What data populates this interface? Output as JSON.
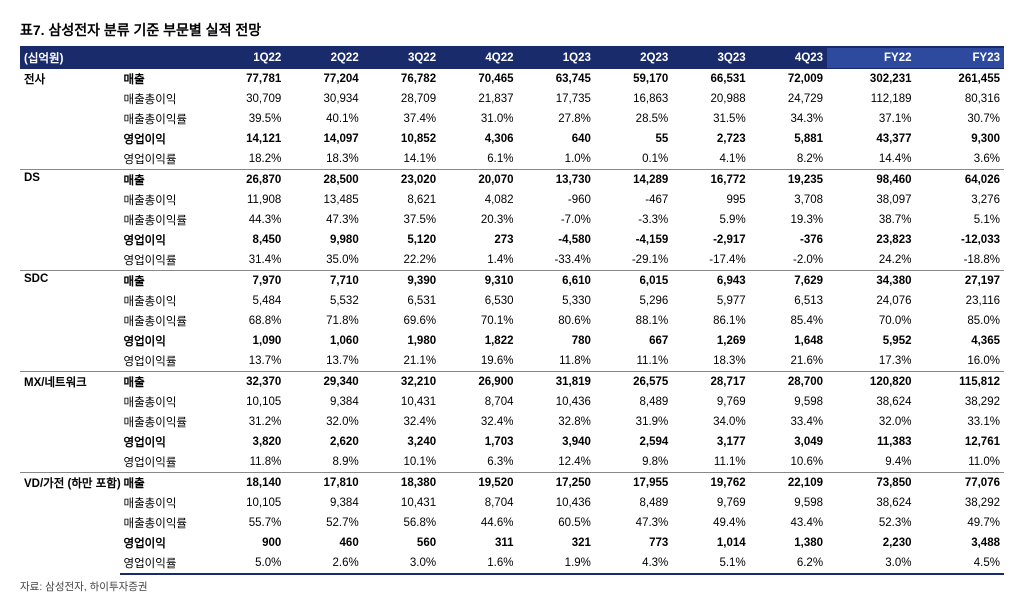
{
  "title": "표7. 삼성전자 분류 기준 부문별 실적 전망",
  "unit": "(십억원)",
  "source": "자료: 삼성전자, 하이투자증권",
  "columns": [
    "1Q22",
    "2Q22",
    "3Q22",
    "4Q22",
    "1Q23",
    "2Q23",
    "3Q23",
    "4Q23",
    "FY22",
    "FY23"
  ],
  "segments": [
    {
      "name": "전사",
      "rows": [
        {
          "label": "매출",
          "bold": true,
          "cells": [
            "77,781",
            "77,204",
            "76,782",
            "70,465",
            "63,745",
            "59,170",
            "66,531",
            "72,009",
            "302,231",
            "261,455"
          ]
        },
        {
          "label": "매출총이익",
          "cells": [
            "30,709",
            "30,934",
            "28,709",
            "21,837",
            "17,735",
            "16,863",
            "20,988",
            "24,729",
            "112,189",
            "80,316"
          ]
        },
        {
          "label": "매출총이익률",
          "cells": [
            "39.5%",
            "40.1%",
            "37.4%",
            "31.0%",
            "27.8%",
            "28.5%",
            "31.5%",
            "34.3%",
            "37.1%",
            "30.7%"
          ]
        },
        {
          "label": "영업이익",
          "bold": true,
          "cells": [
            "14,121",
            "14,097",
            "10,852",
            "4,306",
            "640",
            "55",
            "2,723",
            "5,881",
            "43,377",
            "9,300"
          ]
        },
        {
          "label": "영업이익률",
          "cells": [
            "18.2%",
            "18.3%",
            "14.1%",
            "6.1%",
            "1.0%",
            "0.1%",
            "4.1%",
            "8.2%",
            "14.4%",
            "3.6%"
          ]
        }
      ]
    },
    {
      "name": "DS",
      "rows": [
        {
          "label": "매출",
          "bold": true,
          "cells": [
            "26,870",
            "28,500",
            "23,020",
            "20,070",
            "13,730",
            "14,289",
            "16,772",
            "19,235",
            "98,460",
            "64,026"
          ]
        },
        {
          "label": "매출총이익",
          "cells": [
            "11,908",
            "13,485",
            "8,621",
            "4,082",
            "-960",
            "-467",
            "995",
            "3,708",
            "38,097",
            "3,276"
          ]
        },
        {
          "label": "매출총이익률",
          "cells": [
            "44.3%",
            "47.3%",
            "37.5%",
            "20.3%",
            "-7.0%",
            "-3.3%",
            "5.9%",
            "19.3%",
            "38.7%",
            "5.1%"
          ]
        },
        {
          "label": "영업이익",
          "bold": true,
          "cells": [
            "8,450",
            "9,980",
            "5,120",
            "273",
            "-4,580",
            "-4,159",
            "-2,917",
            "-376",
            "23,823",
            "-12,033"
          ]
        },
        {
          "label": "영업이익률",
          "cells": [
            "31.4%",
            "35.0%",
            "22.2%",
            "1.4%",
            "-33.4%",
            "-29.1%",
            "-17.4%",
            "-2.0%",
            "24.2%",
            "-18.8%"
          ]
        }
      ]
    },
    {
      "name": "SDC",
      "rows": [
        {
          "label": "매출",
          "bold": true,
          "cells": [
            "7,970",
            "7,710",
            "9,390",
            "9,310",
            "6,610",
            "6,015",
            "6,943",
            "7,629",
            "34,380",
            "27,197"
          ]
        },
        {
          "label": "매출총이익",
          "cells": [
            "5,484",
            "5,532",
            "6,531",
            "6,530",
            "5,330",
            "5,296",
            "5,977",
            "6,513",
            "24,076",
            "23,116"
          ]
        },
        {
          "label": "매출총이익률",
          "cells": [
            "68.8%",
            "71.8%",
            "69.6%",
            "70.1%",
            "80.6%",
            "88.1%",
            "86.1%",
            "85.4%",
            "70.0%",
            "85.0%"
          ]
        },
        {
          "label": "영업이익",
          "bold": true,
          "cells": [
            "1,090",
            "1,060",
            "1,980",
            "1,822",
            "780",
            "667",
            "1,269",
            "1,648",
            "5,952",
            "4,365"
          ]
        },
        {
          "label": "영업이익률",
          "cells": [
            "13.7%",
            "13.7%",
            "21.1%",
            "19.6%",
            "11.8%",
            "11.1%",
            "18.3%",
            "21.6%",
            "17.3%",
            "16.0%"
          ]
        }
      ]
    },
    {
      "name": "MX/네트워크",
      "rows": [
        {
          "label": "매출",
          "bold": true,
          "cells": [
            "32,370",
            "29,340",
            "32,210",
            "26,900",
            "31,819",
            "26,575",
            "28,717",
            "28,700",
            "120,820",
            "115,812"
          ]
        },
        {
          "label": "매출총이익",
          "cells": [
            "10,105",
            "9,384",
            "10,431",
            "8,704",
            "10,436",
            "8,489",
            "9,769",
            "9,598",
            "38,624",
            "38,292"
          ]
        },
        {
          "label": "매출총이익률",
          "cells": [
            "31.2%",
            "32.0%",
            "32.4%",
            "32.4%",
            "32.8%",
            "31.9%",
            "34.0%",
            "33.4%",
            "32.0%",
            "33.1%"
          ]
        },
        {
          "label": "영업이익",
          "bold": true,
          "cells": [
            "3,820",
            "2,620",
            "3,240",
            "1,703",
            "3,940",
            "2,594",
            "3,177",
            "3,049",
            "11,383",
            "12,761"
          ]
        },
        {
          "label": "영업이익률",
          "cells": [
            "11.8%",
            "8.9%",
            "10.1%",
            "6.3%",
            "12.4%",
            "9.8%",
            "11.1%",
            "10.6%",
            "9.4%",
            "11.0%"
          ]
        }
      ]
    },
    {
      "name": "VD/가전 (하만 포함)",
      "rows": [
        {
          "label": "매출",
          "bold": true,
          "cells": [
            "18,140",
            "17,810",
            "18,380",
            "19,520",
            "17,250",
            "17,955",
            "19,762",
            "22,109",
            "73,850",
            "77,076"
          ]
        },
        {
          "label": "매출총이익",
          "cells": [
            "10,105",
            "9,384",
            "10,431",
            "8,704",
            "10,436",
            "8,489",
            "9,769",
            "9,598",
            "38,624",
            "38,292"
          ]
        },
        {
          "label": "매출총이익률",
          "cells": [
            "55.7%",
            "52.7%",
            "56.8%",
            "44.6%",
            "60.5%",
            "47.3%",
            "49.4%",
            "43.4%",
            "52.3%",
            "49.7%"
          ]
        },
        {
          "label": "영업이익",
          "bold": true,
          "cells": [
            "900",
            "460",
            "560",
            "311",
            "321",
            "773",
            "1,014",
            "1,380",
            "2,230",
            "3,488"
          ]
        },
        {
          "label": "영업이익률",
          "cells": [
            "5.0%",
            "2.6%",
            "3.0%",
            "1.6%",
            "1.9%",
            "4.3%",
            "5.1%",
            "6.2%",
            "3.0%",
            "4.5%"
          ]
        }
      ]
    }
  ]
}
